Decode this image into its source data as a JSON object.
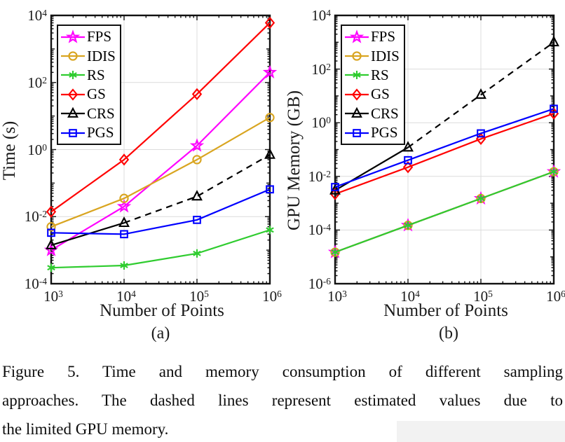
{
  "figure": {
    "caption_lines": [
      "Figure 5. Time and memory consumption of different sampling",
      "approaches. The dashed lines represent estimated values due to",
      "the limited GPU memory."
    ],
    "sublabels": [
      "(a)",
      "(b)"
    ],
    "grid_color": "#dcdcdc",
    "axis_color": "#111111"
  },
  "chart_data": [
    {
      "type": "line",
      "title": "",
      "xlabel": "Number of Points",
      "ylabel": "Time (s)",
      "xscale": "log",
      "yscale": "log",
      "grid": true,
      "legend_position": "top-left",
      "xlim": [
        1000,
        1000000
      ],
      "ylim": [
        0.0001,
        10000
      ],
      "x": [
        1000,
        10000,
        100000,
        1000000
      ],
      "xtick_labels": [
        "10^3",
        "10^4",
        "10^5",
        "10^6"
      ],
      "ytick_labels": [
        "10^4",
        "10^2",
        "10^0",
        "10^-2",
        "10^-4"
      ],
      "series": [
        {
          "name": "FPS",
          "color": "#FF00FF",
          "marker": "pentagram",
          "values": [
            0.001,
            0.02,
            1.3,
            200
          ]
        },
        {
          "name": "IDIS",
          "color": "#D9A520",
          "marker": "circle",
          "values": [
            0.005,
            0.035,
            0.5,
            9
          ]
        },
        {
          "name": "RS",
          "color": "#2FCC2F",
          "marker": "asterisk",
          "values": [
            0.0003,
            0.00035,
            0.0008,
            0.004
          ]
        },
        {
          "name": "GS",
          "color": "#FF0000",
          "marker": "diamond",
          "values": [
            0.014,
            0.5,
            45,
            6000
          ]
        },
        {
          "name": "CRS",
          "color": "#000000",
          "marker": "triangle",
          "values": [
            0.0014,
            0.0065,
            0.04,
            0.7
          ],
          "dashed_from_index": 1,
          "dashed_meaning": "estimated values"
        },
        {
          "name": "PGS",
          "color": "#0000FF",
          "marker": "square",
          "values": [
            0.0033,
            0.003,
            0.008,
            0.065
          ]
        }
      ]
    },
    {
      "type": "line",
      "title": "",
      "xlabel": "Number of Points",
      "ylabel": "GPU Memory (GB)",
      "xscale": "log",
      "yscale": "log",
      "grid": true,
      "legend_position": "top-left",
      "xlim": [
        1000,
        1000000
      ],
      "ylim": [
        1e-06,
        10000
      ],
      "x": [
        1000,
        10000,
        100000,
        1000000
      ],
      "xtick_labels": [
        "10^3",
        "10^4",
        "10^5",
        "10^6"
      ],
      "ytick_labels": [
        "10^4",
        "10^2",
        "10^0",
        "10^-2",
        "10^-4",
        "10^-6"
      ],
      "series": [
        {
          "name": "FPS",
          "color": "#FF00FF",
          "marker": "pentagram",
          "values": [
            1.5e-05,
            0.00015,
            0.0015,
            0.015
          ]
        },
        {
          "name": "IDIS",
          "color": "#D9A520",
          "marker": "circle",
          "values": [
            1.5e-05,
            0.00015,
            0.0015,
            0.015
          ]
        },
        {
          "name": "RS",
          "color": "#2FCC2F",
          "marker": "asterisk",
          "values": [
            1.5e-05,
            0.00015,
            0.0015,
            0.015
          ]
        },
        {
          "name": "GS",
          "color": "#FF0000",
          "marker": "diamond",
          "values": [
            0.0022,
            0.022,
            0.25,
            2.2
          ]
        },
        {
          "name": "CRS",
          "color": "#000000",
          "marker": "triangle",
          "values": [
            0.003,
            0.12,
            11,
            1000
          ],
          "dashed_from_index": 1,
          "dashed_meaning": "estimated values"
        },
        {
          "name": "PGS",
          "color": "#0000FF",
          "marker": "square",
          "values": [
            0.004,
            0.04,
            0.4,
            3.3
          ]
        }
      ]
    }
  ]
}
